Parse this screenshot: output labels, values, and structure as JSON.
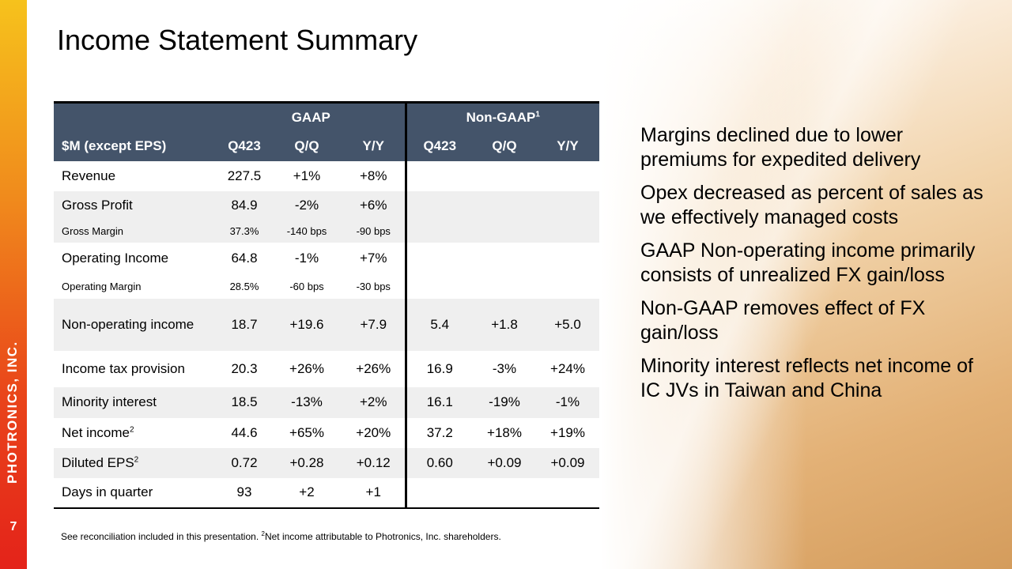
{
  "sidebar": {
    "company": "PHOTRONICS, INC.",
    "page_number": "7"
  },
  "title": "Income Statement Summary",
  "table": {
    "group_headers": {
      "gaap": "GAAP",
      "non_gaap": "Non-GAAP",
      "non_gaap_sup": "1"
    },
    "columns": [
      "$M (except EPS)",
      "Q423",
      "Q/Q",
      "Y/Y",
      "Q423",
      "Q/Q",
      "Y/Y"
    ],
    "rows": [
      {
        "label": "Revenue",
        "sup": "",
        "cells": [
          "227.5",
          "+1%",
          "+8%",
          "",
          "",
          ""
        ],
        "shade": "w",
        "sub": false
      },
      {
        "label": "Gross Profit",
        "sup": "",
        "cells": [
          "84.9",
          "-2%",
          "+6%",
          "",
          "",
          ""
        ],
        "shade": "g",
        "sub": false
      },
      {
        "label": "Gross Margin",
        "sup": "",
        "cells": [
          "37.3%",
          "-140 bps",
          "-90 bps",
          "",
          "",
          ""
        ],
        "shade": "g",
        "sub": true
      },
      {
        "label": "Operating Income",
        "sup": "",
        "cells": [
          "64.8",
          "-1%",
          "+7%",
          "",
          "",
          ""
        ],
        "shade": "w",
        "sub": false
      },
      {
        "label": "Operating Margin",
        "sup": "",
        "cells": [
          "28.5%",
          "-60 bps",
          "-30 bps",
          "",
          "",
          ""
        ],
        "shade": "w",
        "sub": true
      },
      {
        "label": "Non-operating income",
        "sup": "",
        "cells": [
          "18.7",
          "+19.6",
          "+7.9",
          "5.4",
          "+1.8",
          "+5.0"
        ],
        "shade": "g",
        "sub": false
      },
      {
        "label": "Income tax provision",
        "sup": "",
        "cells": [
          "20.3",
          "+26%",
          "+26%",
          "16.9",
          "-3%",
          "+24%"
        ],
        "shade": "w",
        "sub": false
      },
      {
        "label": "Minority interest",
        "sup": "",
        "cells": [
          "18.5",
          "-13%",
          "+2%",
          "16.1",
          "-19%",
          "-1%"
        ],
        "shade": "g",
        "sub": false
      },
      {
        "label": "Net income",
        "sup": "2",
        "cells": [
          "44.6",
          "+65%",
          "+20%",
          "37.2",
          "+18%",
          "+19%"
        ],
        "shade": "w",
        "sub": false
      },
      {
        "label": "Diluted EPS",
        "sup": "2",
        "cells": [
          "0.72",
          "+0.28",
          "+0.12",
          "0.60",
          "+0.09",
          "+0.09"
        ],
        "shade": "g",
        "sub": false
      },
      {
        "label": "Days in quarter",
        "sup": "",
        "cells": [
          "93",
          "+2",
          "+1",
          "",
          "",
          ""
        ],
        "shade": "w",
        "sub": false
      }
    ]
  },
  "footnote": {
    "part1": "See reconciliation included in this presentation. ",
    "sup": "2",
    "part2": "Net income attributable to Photronics, Inc. shareholders."
  },
  "bullets": [
    "Margins declined due to lower premiums for expedited delivery",
    "Opex decreased as percent of sales as we effectively managed costs",
    "GAAP Non-operating income primarily consists of unrealized FX gain/loss",
    "Non-GAAP removes effect of FX gain/loss",
    "Minority interest reflects net income of IC JVs in Taiwan and China"
  ],
  "colors": {
    "header_bg": "#44546a",
    "row_shade": "#efefef",
    "side_bar_top": "#f6c21c",
    "side_bar_bottom": "#e4231a"
  }
}
